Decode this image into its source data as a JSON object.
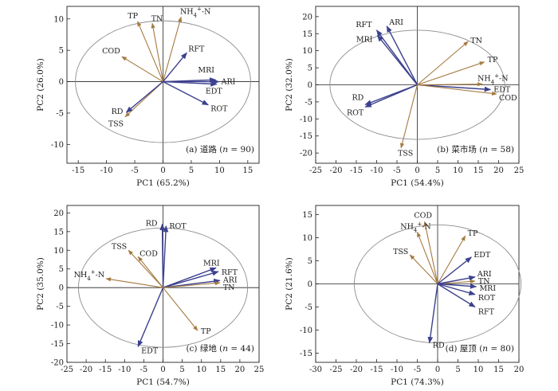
{
  "colors": {
    "environment": "#a57a3f",
    "rainfall": "#3c418e",
    "ellipse": "#8c8c8c"
  },
  "chart_data": [
    {
      "type": "scatter",
      "panel_label": "(a) 道路 (n = 90)",
      "xlabel": "PC1 (65.2%)",
      "ylabel": "PC2 (26.0%)",
      "xlim": [
        -17,
        17
      ],
      "ylim": [
        -13,
        12
      ],
      "xticks": [
        -15,
        -10,
        -5,
        0,
        5,
        10,
        15
      ],
      "yticks": [
        -10,
        -5,
        0,
        5,
        10
      ],
      "ellipse": {
        "cx": 0,
        "cy": 0,
        "rx": 15.5,
        "ry": 9.7
      },
      "vectors": [
        {
          "label": "TP",
          "x": -4.5,
          "y": 9.6,
          "group": "env"
        },
        {
          "label": "TN",
          "x": -1.9,
          "y": 9.3,
          "group": "env"
        },
        {
          "label": "NH4+-N",
          "x": 3.2,
          "y": 10.3,
          "group": "env"
        },
        {
          "label": "COD",
          "x": -7.3,
          "y": 4.0,
          "group": "env"
        },
        {
          "label": "TSS",
          "x": -6.7,
          "y": -5.6,
          "group": "env"
        },
        {
          "label": "RFT",
          "x": 4.2,
          "y": 4.6,
          "group": "rain"
        },
        {
          "label": "MRI",
          "x": 9.3,
          "y": 0.3,
          "group": "rain"
        },
        {
          "label": "ARI",
          "x": 9.9,
          "y": 0.0,
          "group": "rain"
        },
        {
          "label": "EDT",
          "x": 9.5,
          "y": -0.4,
          "group": "rain"
        },
        {
          "label": "ROT",
          "x": 8.0,
          "y": -3.7,
          "group": "rain"
        },
        {
          "label": "RD",
          "x": -6.5,
          "y": -4.9,
          "group": "rain"
        }
      ]
    },
    {
      "type": "scatter",
      "panel_label": "(b) 菜市场 (n = 58)",
      "xlabel": "PC1 (54.4%)",
      "ylabel": "PC2 (32.0%)",
      "xlim": [
        -25,
        25
      ],
      "ylim": [
        -23,
        23
      ],
      "xticks": [
        -25,
        -20,
        -15,
        -10,
        -5,
        0,
        5,
        10,
        15,
        20,
        25
      ],
      "yticks": [
        -20,
        -15,
        -10,
        -5,
        0,
        5,
        10,
        15,
        20
      ],
      "ellipse": {
        "cx": 0,
        "cy": 0,
        "rx": 21.5,
        "ry": 16
      },
      "vectors": [
        {
          "label": "ARI",
          "x": -7.5,
          "y": 17.2,
          "group": "rain"
        },
        {
          "label": "RFT",
          "x": -10.0,
          "y": 16.0,
          "group": "rain"
        },
        {
          "label": "MRI",
          "x": -9.8,
          "y": 14.5,
          "group": "rain"
        },
        {
          "label": "RD",
          "x": -12.8,
          "y": -5.8,
          "group": "rain"
        },
        {
          "label": "ROT",
          "x": -12.8,
          "y": -6.5,
          "group": "rain"
        },
        {
          "label": "EDT",
          "x": 18.0,
          "y": -1.4,
          "group": "rain"
        },
        {
          "label": "TN",
          "x": 12.5,
          "y": 12.7,
          "group": "env"
        },
        {
          "label": "TP",
          "x": 16.5,
          "y": 6.7,
          "group": "env"
        },
        {
          "label": "NH4+-N",
          "x": 16.0,
          "y": 0.2,
          "group": "env"
        },
        {
          "label": "COD",
          "x": 19.5,
          "y": -2.7,
          "group": "env"
        },
        {
          "label": "TSS",
          "x": -4.0,
          "y": -18.5,
          "group": "env"
        }
      ]
    },
    {
      "type": "scatter",
      "panel_label": "(c) 绿地 (n = 44)",
      "xlabel": "PC1 (54.7%)",
      "ylabel": "PC2 (35.0%)",
      "xlim": [
        -25,
        25
      ],
      "ylim": [
        -20,
        22
      ],
      "xticks": [
        -25,
        -20,
        -15,
        -10,
        -5,
        0,
        5,
        10,
        15,
        20,
        25
      ],
      "yticks": [
        -20,
        -15,
        -10,
        -5,
        0,
        5,
        10,
        15,
        20
      ],
      "ellipse": {
        "cx": 0,
        "cy": 0,
        "rx": 22,
        "ry": 16
      },
      "vectors": [
        {
          "label": "RD",
          "x": -0.2,
          "y": 17.0,
          "group": "rain"
        },
        {
          "label": "ROT",
          "x": 0.8,
          "y": 16.5,
          "group": "rain"
        },
        {
          "label": "MRI",
          "x": 13.8,
          "y": 5.3,
          "group": "rain"
        },
        {
          "label": "RFT",
          "x": 14.4,
          "y": 4.3,
          "group": "rain"
        },
        {
          "label": "ARI",
          "x": 14.8,
          "y": 1.9,
          "group": "rain"
        },
        {
          "label": "EDT",
          "x": -6.5,
          "y": -15.8,
          "group": "rain"
        },
        {
          "label": "TN",
          "x": 14.8,
          "y": 1.3,
          "group": "env"
        },
        {
          "label": "TSS",
          "x": -9.0,
          "y": 10.0,
          "group": "env"
        },
        {
          "label": "COD",
          "x": -6.5,
          "y": 8.3,
          "group": "env"
        },
        {
          "label": "NH4+-N",
          "x": -14.8,
          "y": 2.4,
          "group": "env"
        },
        {
          "label": "TP",
          "x": 9.0,
          "y": -11.5,
          "group": "env"
        }
      ]
    },
    {
      "type": "scatter",
      "panel_label": "(d) 屋顶 (n = 80)",
      "xlabel": "PC1 (74.3%)",
      "ylabel": "PC2 (21.6%)",
      "xlim": [
        -30,
        20
      ],
      "ylim": [
        -17,
        17
      ],
      "xticks": [
        -30,
        -25,
        -20,
        -15,
        -10,
        -5,
        0,
        5,
        10,
        15,
        20
      ],
      "yticks": [
        -15,
        -10,
        -5,
        0,
        5,
        10,
        15
      ],
      "ellipse": {
        "cx": 0,
        "cy": 0,
        "rx": 20.5,
        "ry": 12.8
      },
      "vectors": [
        {
          "label": "COD",
          "x": -3.2,
          "y": 13.5,
          "group": "env"
        },
        {
          "label": "NH4+-N",
          "x": -5.0,
          "y": 11.2,
          "group": "env"
        },
        {
          "label": "TSS",
          "x": -6.8,
          "y": 6.3,
          "group": "env"
        },
        {
          "label": "TP",
          "x": 6.8,
          "y": 10.4,
          "group": "env"
        },
        {
          "label": "TN",
          "x": 9.2,
          "y": 0.6,
          "group": "env"
        },
        {
          "label": "EDT",
          "x": 8.3,
          "y": 5.8,
          "group": "rain"
        },
        {
          "label": "ARI",
          "x": 9.2,
          "y": 1.5,
          "group": "rain"
        },
        {
          "label": "MRI",
          "x": 9.5,
          "y": -0.6,
          "group": "rain"
        },
        {
          "label": "ROT",
          "x": 9.2,
          "y": -2.3,
          "group": "rain"
        },
        {
          "label": "RFT",
          "x": 9.2,
          "y": -5.0,
          "group": "rain"
        },
        {
          "label": "RD",
          "x": -2.0,
          "y": -12.8,
          "group": "rain"
        }
      ]
    }
  ]
}
